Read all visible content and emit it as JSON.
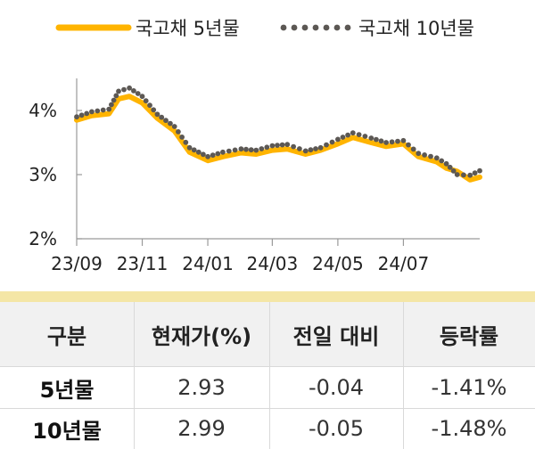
{
  "colors": {
    "series_5y": "#ffb400",
    "series_10y": "#5c5854",
    "axis": "#9a9a9a",
    "header_bg": "#f1f1f1",
    "accent_bar": "#f4e6a6"
  },
  "chart_data": {
    "type": "line",
    "legend": {
      "placement": "top",
      "entries": [
        "국고채 5년물",
        "국고채 10년물"
      ]
    },
    "x_ticks": [
      "23/09",
      "23/11",
      "24/01",
      "24/03",
      "24/05",
      "24/07"
    ],
    "y_ticks": [
      "2%",
      "3%",
      "4%"
    ],
    "ylim": [
      2.0,
      4.5
    ],
    "grid": false,
    "series": [
      {
        "name": "국고채 5년물",
        "style": "solid",
        "x": [
          "2023-09-01",
          "2023-09-15",
          "2023-10-01",
          "2023-10-10",
          "2023-10-20",
          "2023-11-01",
          "2023-11-15",
          "2023-12-01",
          "2023-12-15",
          "2024-01-01",
          "2024-01-15",
          "2024-02-01",
          "2024-02-15",
          "2024-03-01",
          "2024-03-15",
          "2024-04-01",
          "2024-04-15",
          "2024-05-01",
          "2024-05-15",
          "2024-06-01",
          "2024-06-15",
          "2024-07-01",
          "2024-07-15",
          "2024-08-01",
          "2024-08-10",
          "2024-08-20",
          "2024-09-01",
          "2024-09-10"
        ],
        "values": [
          3.85,
          3.92,
          3.95,
          4.18,
          4.22,
          4.12,
          3.88,
          3.68,
          3.35,
          3.22,
          3.28,
          3.34,
          3.32,
          3.38,
          3.4,
          3.32,
          3.38,
          3.48,
          3.58,
          3.5,
          3.44,
          3.48,
          3.28,
          3.2,
          3.1,
          3.05,
          2.92,
          2.96
        ]
      },
      {
        "name": "국고채 10년물",
        "style": "dotted",
        "x": [
          "2023-09-01",
          "2023-09-15",
          "2023-10-01",
          "2023-10-10",
          "2023-10-20",
          "2023-11-01",
          "2023-11-15",
          "2023-12-01",
          "2023-12-15",
          "2024-01-01",
          "2024-01-15",
          "2024-02-01",
          "2024-02-15",
          "2024-03-01",
          "2024-03-15",
          "2024-04-01",
          "2024-04-15",
          "2024-05-01",
          "2024-05-15",
          "2024-06-01",
          "2024-06-15",
          "2024-07-01",
          "2024-07-15",
          "2024-08-01",
          "2024-08-10",
          "2024-08-20",
          "2024-09-01",
          "2024-09-10"
        ],
        "values": [
          3.9,
          3.98,
          4.02,
          4.3,
          4.35,
          4.22,
          3.94,
          3.75,
          3.42,
          3.28,
          3.35,
          3.4,
          3.38,
          3.45,
          3.47,
          3.37,
          3.42,
          3.55,
          3.65,
          3.57,
          3.5,
          3.53,
          3.33,
          3.26,
          3.17,
          3.0,
          2.99,
          3.06
        ]
      }
    ]
  },
  "table": {
    "headers": [
      "구분",
      "현재가(%)",
      "전일 대비",
      "등락률"
    ],
    "rows": [
      {
        "name": "5년물",
        "price": "2.93",
        "change": "-0.04",
        "rate": "-1.41%"
      },
      {
        "name": "10년물",
        "price": "2.99",
        "change": "-0.05",
        "rate": "-1.48%"
      }
    ]
  }
}
